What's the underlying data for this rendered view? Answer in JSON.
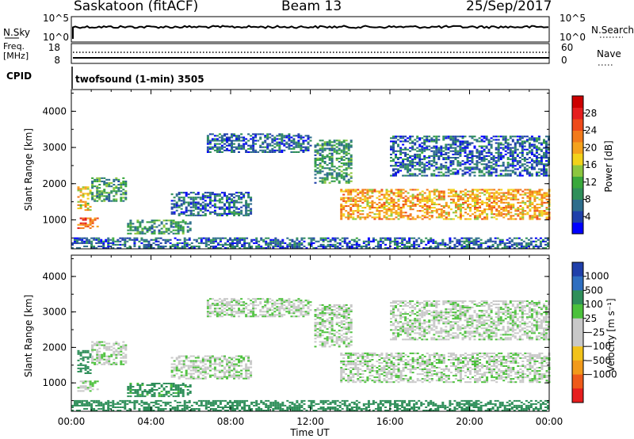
{
  "header": {
    "station": "Saskatoon (fitACF)",
    "beam": "Beam 13",
    "date": "25/Sep/2017"
  },
  "summary_panels": {
    "nsky_label": "N.Sky",
    "nsky_ticks": [
      "10^5",
      "10^0"
    ],
    "nsearch_label": "N.Search",
    "nsearch_ticks": [
      "10^5",
      "10^0"
    ],
    "freq_label": "Freq.",
    "freq_unit": "[MHz]",
    "freq_ticks": [
      "18",
      "8"
    ],
    "nave_label": "Nave",
    "nave_ticks": [
      "60",
      "0"
    ],
    "cpid_label": "CPID",
    "cpid_value": "twofsound (1-min) 3505"
  },
  "colors": {
    "power_scale": [
      "#0000ff",
      "#1f3faa",
      "#2e6e8c",
      "#2f8f5a",
      "#39a83c",
      "#8cc63f",
      "#f2d21a",
      "#f5a21c",
      "#f27a1a",
      "#ee4a1a",
      "#e61e1e",
      "#cc0000"
    ],
    "velocity_scale": [
      "#1f3faa",
      "#2e6ec0",
      "#2f8f5a",
      "#4cc13c",
      "#c8c8c8",
      "#c8c8c8",
      "#f2c21a",
      "#f29a1a",
      "#ee5a1a",
      "#e61e1e"
    ],
    "ground_scatter": "#c8c8c8"
  },
  "chart_data": [
    {
      "type": "heatmap",
      "name": "power",
      "xlabel": "",
      "ylabel": "Slant Range [km]",
      "colorbar_label": "Power [dB]",
      "colorbar_ticks": [
        "28",
        "24",
        "20",
        "16",
        "12",
        "8",
        "4"
      ],
      "colorbar_range": [
        0,
        32
      ],
      "xlim": [
        0,
        24
      ],
      "ylim": [
        200,
        4600
      ],
      "y_ticks": [
        "4000",
        "3000",
        "2000",
        "1000"
      ],
      "x_ticks": [
        "00:00",
        "04:00",
        "08:00",
        "12:00",
        "16:00",
        "20:00",
        "00:00"
      ],
      "echo_regions": [
        {
          "t": [
            0.3,
            1.0
          ],
          "r": [
            1250,
            1900
          ],
          "p": 18
        },
        {
          "t": [
            0.3,
            1.3
          ],
          "r": [
            750,
            1050
          ],
          "p": 24
        },
        {
          "t": [
            1.0,
            2.8
          ],
          "r": [
            1500,
            2150
          ],
          "p": 10
        },
        {
          "t": [
            2.8,
            6.0
          ],
          "r": [
            600,
            1000
          ],
          "p": 10
        },
        {
          "t": [
            5.0,
            9.0
          ],
          "r": [
            1100,
            1750
          ],
          "p": 6
        },
        {
          "t": [
            6.8,
            12.0
          ],
          "r": [
            2850,
            3350
          ],
          "p": 6
        },
        {
          "t": [
            12.2,
            14.0
          ],
          "r": [
            2000,
            3200
          ],
          "p": 10
        },
        {
          "t": [
            13.5,
            24.0
          ],
          "r": [
            1000,
            1850
          ],
          "p": 20
        },
        {
          "t": [
            16.0,
            24.0
          ],
          "r": [
            2200,
            3300
          ],
          "p": 6
        },
        {
          "t": [
            0.0,
            24.0
          ],
          "r": [
            200,
            500
          ],
          "p": 6
        }
      ]
    },
    {
      "type": "heatmap",
      "name": "velocity",
      "xlabel": "Time UT",
      "ylabel": "Slant Range [km]",
      "colorbar_label": "Velocity [m s⁻¹]",
      "colorbar_ticks": [
        "1000",
        "500",
        "100",
        "25",
        "−25",
        "−100",
        "−500",
        "−1000"
      ],
      "xlim": [
        0,
        24
      ],
      "ylim": [
        200,
        4600
      ],
      "y_ticks": [
        "4000",
        "3000",
        "2000",
        "1000"
      ],
      "x_ticks": [
        "00:00",
        "04:00",
        "08:00",
        "12:00",
        "16:00",
        "20:00",
        "00:00"
      ],
      "echo_regions": [
        {
          "t": [
            0.3,
            1.3
          ],
          "r": [
            700,
            1050
          ],
          "v": 180
        },
        {
          "t": [
            0.3,
            1.0
          ],
          "r": [
            1250,
            1900
          ],
          "v": 0
        },
        {
          "t": [
            1.0,
            2.8
          ],
          "r": [
            1500,
            2150
          ],
          "v": 0
        },
        {
          "t": [
            2.8,
            6.0
          ],
          "r": [
            600,
            1000
          ],
          "v": 150
        },
        {
          "t": [
            5.0,
            9.0
          ],
          "r": [
            1100,
            1750
          ],
          "v": 0
        },
        {
          "t": [
            6.8,
            12.0
          ],
          "r": [
            2850,
            3350
          ],
          "v": 0
        },
        {
          "t": [
            12.2,
            14.0
          ],
          "r": [
            2000,
            3200
          ],
          "v": 0
        },
        {
          "t": [
            13.5,
            24.0
          ],
          "r": [
            1000,
            1850
          ],
          "v": 0
        },
        {
          "t": [
            16.0,
            24.0
          ],
          "r": [
            2200,
            3300
          ],
          "v": 0
        },
        {
          "t": [
            0.0,
            24.0
          ],
          "r": [
            200,
            500
          ],
          "v": 200
        }
      ]
    }
  ]
}
